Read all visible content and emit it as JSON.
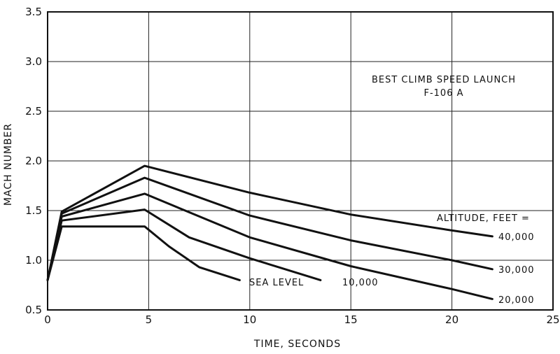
{
  "chart_data": {
    "type": "line",
    "title": "",
    "xlabel": "TIME, SECONDS",
    "ylabel": "MACH NUMBER",
    "xlim": [
      0,
      25
    ],
    "ylim": [
      0.5,
      3.5
    ],
    "xticks": [
      0,
      5,
      10,
      15,
      20,
      25
    ],
    "yticks": [
      0.5,
      1.0,
      1.5,
      2.0,
      2.5,
      3.0,
      3.5
    ],
    "xtick_labels": [
      "0",
      "5",
      "10",
      "15",
      "20",
      "25"
    ],
    "ytick_labels": [
      "0.5",
      "1.0",
      "1.5",
      "2.0",
      "2.5",
      "3.0",
      "3.5"
    ],
    "grid": true,
    "annotation_lines": [
      "BEST CLIMB SPEED LAUNCH",
      "F-106 A"
    ],
    "legend_title": "ALTITUDE, FEET =",
    "series": [
      {
        "name": "40,000",
        "x": [
          0,
          0.7,
          4.8,
          10,
          15,
          20,
          22
        ],
        "y": [
          0.8,
          1.49,
          1.95,
          1.68,
          1.46,
          1.3,
          1.24
        ]
      },
      {
        "name": "30,000",
        "x": [
          0,
          0.7,
          4.8,
          10,
          15,
          20,
          22
        ],
        "y": [
          0.8,
          1.47,
          1.83,
          1.45,
          1.2,
          1.0,
          0.91
        ]
      },
      {
        "name": "20,000",
        "x": [
          0,
          0.7,
          4.8,
          10,
          15,
          20,
          22
        ],
        "y": [
          0.8,
          1.44,
          1.67,
          1.23,
          0.94,
          0.71,
          0.61
        ]
      },
      {
        "name": "10,000",
        "x": [
          0,
          0.7,
          4.8,
          7,
          10,
          13.5
        ],
        "y": [
          0.8,
          1.4,
          1.51,
          1.23,
          1.02,
          0.8
        ]
      },
      {
        "name": "SEA LEVEL",
        "x": [
          0,
          0.7,
          4.8,
          6,
          7.5,
          9.5
        ],
        "y": [
          0.8,
          1.34,
          1.34,
          1.14,
          0.93,
          0.8
        ]
      }
    ]
  }
}
